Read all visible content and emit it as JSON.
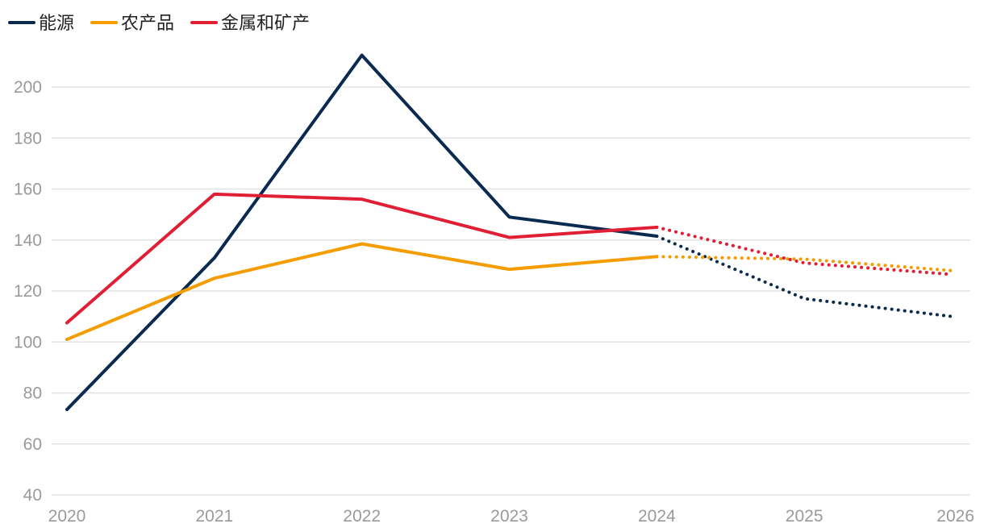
{
  "chart_data": {
    "type": "line",
    "title": "",
    "xlabel": "",
    "ylabel": "",
    "x": [
      "2020",
      "2021",
      "2022",
      "2023",
      "2024",
      "2025",
      "2026"
    ],
    "y_ticks": [
      40,
      60,
      80,
      100,
      120,
      140,
      160,
      180,
      200
    ],
    "ylim": [
      40,
      215
    ],
    "grid": true,
    "legend_position": "top-left",
    "actual_through": "2024",
    "series": [
      {
        "name": "能源",
        "color": "#0a2a4f",
        "values": [
          73.5,
          133,
          212.5,
          149,
          141.5,
          117,
          110
        ]
      },
      {
        "name": "农产品",
        "color": "#f59c00",
        "values": [
          101,
          125,
          138.5,
          128.5,
          133.5,
          132.5,
          128
        ]
      },
      {
        "name": "金属和矿产",
        "color": "#e01f35",
        "values": [
          107.5,
          158,
          156,
          141,
          145,
          131,
          126.5
        ]
      }
    ]
  }
}
